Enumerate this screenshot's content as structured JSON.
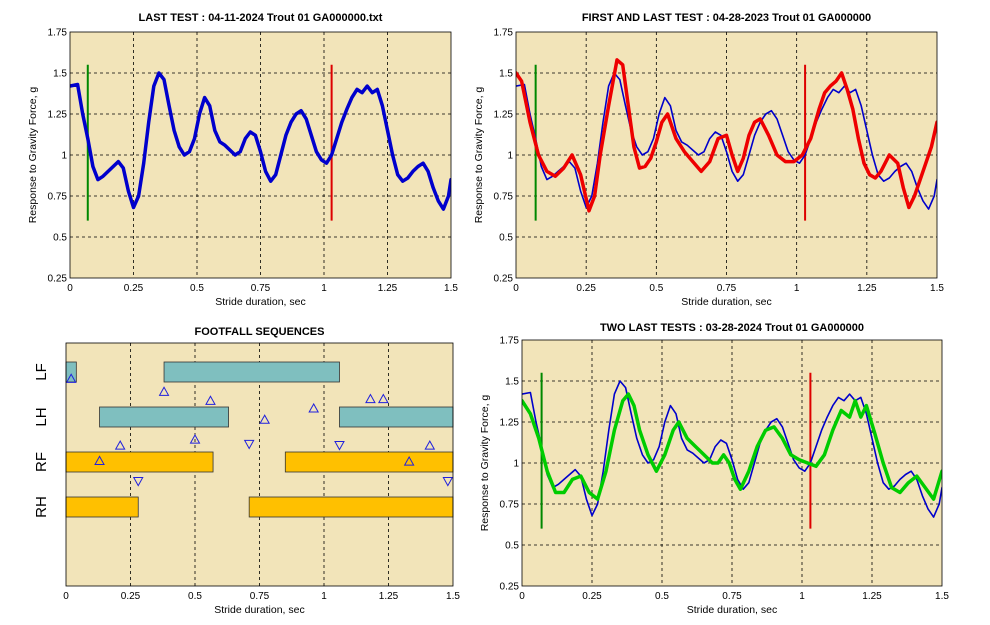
{
  "colors": {
    "background": "#F2E4B9",
    "blue": "#0000CC",
    "red": "#EE0000",
    "green": "#00CC00",
    "dark_green": "#008800",
    "marker_red": "#DD0000",
    "teal_bar": "#7FBFBF",
    "orange_bar": "#FFC000",
    "triangle": "#2020DD"
  },
  "chart_data": [
    {
      "id": "last-test",
      "type": "line",
      "title": "LAST TEST : 04-11-2024 Trout 01 GA000000.txt",
      "xlabel": "Stride duration, sec",
      "ylabel": "Response to Gravity Force, g",
      "xlim": [
        0,
        1.5
      ],
      "ylim": [
        0.25,
        1.75
      ],
      "xticks": [
        "0",
        "0.25",
        "0.5",
        "0.75",
        "1",
        "1.25",
        "1.5"
      ],
      "yticks": [
        "0.25",
        "0.5",
        "0.75",
        "1",
        "1.25",
        "1.5",
        "1.75"
      ],
      "grid": true,
      "vlines": [
        {
          "x": 0.07,
          "color": "dark_green"
        },
        {
          "x": 1.03,
          "color": "marker_red"
        }
      ],
      "series": [
        {
          "color": "blue",
          "width": 3.5,
          "x": [
            0,
            0.03,
            0.05,
            0.07,
            0.09,
            0.11,
            0.13,
            0.15,
            0.17,
            0.19,
            0.21,
            0.23,
            0.25,
            0.27,
            0.29,
            0.31,
            0.33,
            0.35,
            0.37,
            0.39,
            0.41,
            0.43,
            0.45,
            0.47,
            0.49,
            0.51,
            0.53,
            0.55,
            0.57,
            0.59,
            0.61,
            0.63,
            0.65,
            0.67,
            0.69,
            0.71,
            0.73,
            0.75,
            0.77,
            0.79,
            0.81,
            0.83,
            0.85,
            0.87,
            0.89,
            0.91,
            0.93,
            0.95,
            0.97,
            0.99,
            1.01,
            1.03,
            1.05,
            1.07,
            1.09,
            1.11,
            1.13,
            1.15,
            1.17,
            1.19,
            1.21,
            1.23,
            1.25,
            1.27,
            1.29,
            1.31,
            1.33,
            1.35,
            1.37,
            1.39,
            1.41,
            1.43,
            1.45,
            1.47,
            1.49,
            1.5
          ],
          "y": [
            1.42,
            1.43,
            1.25,
            1.1,
            0.93,
            0.85,
            0.87,
            0.9,
            0.93,
            0.96,
            0.92,
            0.78,
            0.68,
            0.75,
            0.95,
            1.2,
            1.42,
            1.5,
            1.46,
            1.3,
            1.15,
            1.05,
            1.0,
            1.02,
            1.1,
            1.25,
            1.35,
            1.3,
            1.15,
            1.08,
            1.06,
            1.03,
            1.0,
            1.02,
            1.1,
            1.14,
            1.12,
            1.02,
            0.9,
            0.84,
            0.88,
            1.0,
            1.12,
            1.2,
            1.25,
            1.27,
            1.22,
            1.12,
            1.02,
            0.97,
            0.95,
            1.0,
            1.1,
            1.2,
            1.28,
            1.35,
            1.4,
            1.38,
            1.42,
            1.38,
            1.4,
            1.3,
            1.15,
            1.0,
            0.88,
            0.84,
            0.86,
            0.9,
            0.93,
            0.95,
            0.9,
            0.8,
            0.72,
            0.67,
            0.75,
            0.85
          ]
        }
      ]
    },
    {
      "id": "first-and-last",
      "type": "line",
      "title": "FIRST AND LAST TEST : 04-28-2023 Trout 01 GA000000",
      "xlabel": "Stride duration, sec",
      "ylabel": "Response to Gravity Force, g",
      "xlim": [
        0,
        1.5
      ],
      "ylim": [
        0.25,
        1.75
      ],
      "xticks": [
        "0",
        "0.25",
        "0.5",
        "0.75",
        "1",
        "1.25",
        "1.5"
      ],
      "yticks": [
        "0.25",
        "0.5",
        "0.75",
        "1",
        "1.25",
        "1.5",
        "1.75"
      ],
      "grid": true,
      "vlines": [
        {
          "x": 0.07,
          "color": "dark_green"
        },
        {
          "x": 1.03,
          "color": "marker_red"
        }
      ],
      "series": [
        {
          "color": "blue",
          "width": 1.6,
          "x": [
            0,
            0.03,
            0.05,
            0.07,
            0.09,
            0.11,
            0.13,
            0.15,
            0.17,
            0.19,
            0.21,
            0.23,
            0.25,
            0.27,
            0.29,
            0.31,
            0.33,
            0.35,
            0.37,
            0.39,
            0.41,
            0.43,
            0.45,
            0.47,
            0.49,
            0.51,
            0.53,
            0.55,
            0.57,
            0.59,
            0.61,
            0.63,
            0.65,
            0.67,
            0.69,
            0.71,
            0.73,
            0.75,
            0.77,
            0.79,
            0.81,
            0.83,
            0.85,
            0.87,
            0.89,
            0.91,
            0.93,
            0.95,
            0.97,
            0.99,
            1.01,
            1.03,
            1.05,
            1.07,
            1.09,
            1.11,
            1.13,
            1.15,
            1.17,
            1.19,
            1.21,
            1.23,
            1.25,
            1.27,
            1.29,
            1.31,
            1.33,
            1.35,
            1.37,
            1.39,
            1.41,
            1.43,
            1.45,
            1.47,
            1.49,
            1.5
          ],
          "y": [
            1.42,
            1.43,
            1.25,
            1.1,
            0.93,
            0.85,
            0.87,
            0.9,
            0.93,
            0.96,
            0.92,
            0.78,
            0.68,
            0.75,
            0.95,
            1.2,
            1.42,
            1.5,
            1.46,
            1.3,
            1.15,
            1.05,
            1.0,
            1.02,
            1.1,
            1.25,
            1.35,
            1.3,
            1.15,
            1.08,
            1.06,
            1.03,
            1.0,
            1.02,
            1.1,
            1.14,
            1.12,
            1.02,
            0.9,
            0.84,
            0.88,
            1.0,
            1.12,
            1.2,
            1.25,
            1.27,
            1.22,
            1.12,
            1.02,
            0.97,
            0.95,
            1.0,
            1.1,
            1.2,
            1.28,
            1.35,
            1.4,
            1.38,
            1.42,
            1.38,
            1.4,
            1.3,
            1.15,
            1.0,
            0.88,
            0.84,
            0.86,
            0.9,
            0.93,
            0.95,
            0.9,
            0.8,
            0.72,
            0.67,
            0.75,
            0.85
          ]
        },
        {
          "color": "red",
          "width": 3.5,
          "x": [
            0,
            0.02,
            0.05,
            0.08,
            0.11,
            0.14,
            0.17,
            0.2,
            0.23,
            0.26,
            0.28,
            0.3,
            0.33,
            0.36,
            0.38,
            0.4,
            0.42,
            0.44,
            0.46,
            0.48,
            0.5,
            0.52,
            0.54,
            0.57,
            0.6,
            0.63,
            0.66,
            0.69,
            0.72,
            0.75,
            0.77,
            0.79,
            0.81,
            0.83,
            0.85,
            0.87,
            0.9,
            0.93,
            0.96,
            0.99,
            1.02,
            1.05,
            1.08,
            1.1,
            1.12,
            1.14,
            1.16,
            1.18,
            1.2,
            1.22,
            1.24,
            1.26,
            1.28,
            1.3,
            1.33,
            1.36,
            1.38,
            1.4,
            1.42,
            1.44,
            1.46,
            1.48,
            1.5
          ],
          "y": [
            1.5,
            1.45,
            1.2,
            1.0,
            0.9,
            0.87,
            0.92,
            1.0,
            0.88,
            0.66,
            0.75,
            1.0,
            1.3,
            1.58,
            1.55,
            1.3,
            1.05,
            0.92,
            0.93,
            0.98,
            1.08,
            1.2,
            1.25,
            1.1,
            1.02,
            0.96,
            0.9,
            0.96,
            1.1,
            1.12,
            1.0,
            0.9,
            0.98,
            1.12,
            1.2,
            1.22,
            1.12,
            1.0,
            0.96,
            0.96,
            1.0,
            1.1,
            1.28,
            1.38,
            1.42,
            1.45,
            1.5,
            1.4,
            1.28,
            1.1,
            0.95,
            0.88,
            0.86,
            0.9,
            1.0,
            0.95,
            0.8,
            0.68,
            0.75,
            0.85,
            0.95,
            1.05,
            1.2
          ]
        }
      ]
    },
    {
      "id": "footfall",
      "type": "bar",
      "title": "FOOTFALL SEQUENCES",
      "xlabel": "Stride duration, sec",
      "xlim": [
        0,
        1.5
      ],
      "xticks": [
        "0",
        "0.25",
        "0.5",
        "0.75",
        "1",
        "1.25",
        "1.5"
      ],
      "grid": true,
      "rows": [
        {
          "label": "LF",
          "color": "teal_bar",
          "intervals": [
            [
              0,
              0.04
            ],
            [
              0.38,
              1.06
            ]
          ]
        },
        {
          "label": "LH",
          "color": "teal_bar",
          "intervals": [
            [
              0.13,
              0.63
            ],
            [
              1.06,
              1.5
            ]
          ]
        },
        {
          "label": "RF",
          "color": "orange_bar",
          "intervals": [
            [
              0,
              0.57
            ],
            [
              0.85,
              1.5
            ]
          ]
        },
        {
          "label": "RH",
          "color": "orange_bar",
          "intervals": [
            [
              0,
              0.28
            ],
            [
              0.71,
              1.5
            ]
          ]
        }
      ],
      "markers": [
        {
          "x": 0.02,
          "y": 0.3,
          "dir": "up"
        },
        {
          "x": 0.38,
          "y": 0.88,
          "dir": "up"
        },
        {
          "x": 0.56,
          "y": 1.28,
          "dir": "up"
        },
        {
          "x": 0.77,
          "y": 2.12,
          "dir": "up"
        },
        {
          "x": 0.96,
          "y": 1.62,
          "dir": "up"
        },
        {
          "x": 1.18,
          "y": 1.2,
          "dir": "up"
        },
        {
          "x": 1.23,
          "y": 1.2,
          "dir": "up"
        },
        {
          "x": 0.21,
          "y": 3.27,
          "dir": "up"
        },
        {
          "x": 0.5,
          "y": 3.0,
          "dir": "up"
        },
        {
          "x": 0.71,
          "y": 3.2,
          "dir": "down"
        },
        {
          "x": 1.06,
          "y": 3.25,
          "dir": "down"
        },
        {
          "x": 1.41,
          "y": 3.27,
          "dir": "up"
        },
        {
          "x": 0.13,
          "y": 3.95,
          "dir": "up"
        },
        {
          "x": 0.28,
          "y": 4.85,
          "dir": "down"
        },
        {
          "x": 1.33,
          "y": 3.98,
          "dir": "up"
        },
        {
          "x": 1.48,
          "y": 4.85,
          "dir": "down"
        }
      ]
    },
    {
      "id": "two-last",
      "type": "line",
      "title": "TWO LAST TESTS : 03-28-2024 Trout 01 GA000000",
      "xlabel": "Stride duration, sec",
      "ylabel": "Response to Gravity Force, g",
      "xlim": [
        0,
        1.5
      ],
      "ylim": [
        0.25,
        1.75
      ],
      "xticks": [
        "0",
        "0.25",
        "0.5",
        "0.75",
        "1",
        "1.25",
        "1.5"
      ],
      "yticks": [
        "0.25",
        "0.5",
        "0.75",
        "1",
        "1.25",
        "1.5",
        "1.75"
      ],
      "grid": true,
      "vlines": [
        {
          "x": 0.07,
          "color": "dark_green"
        },
        {
          "x": 1.03,
          "color": "marker_red"
        }
      ],
      "series": [
        {
          "color": "blue",
          "width": 1.6,
          "x": [
            0,
            0.03,
            0.05,
            0.07,
            0.09,
            0.11,
            0.13,
            0.15,
            0.17,
            0.19,
            0.21,
            0.23,
            0.25,
            0.27,
            0.29,
            0.31,
            0.33,
            0.35,
            0.37,
            0.39,
            0.41,
            0.43,
            0.45,
            0.47,
            0.49,
            0.51,
            0.53,
            0.55,
            0.57,
            0.59,
            0.61,
            0.63,
            0.65,
            0.67,
            0.69,
            0.71,
            0.73,
            0.75,
            0.77,
            0.79,
            0.81,
            0.83,
            0.85,
            0.87,
            0.89,
            0.91,
            0.93,
            0.95,
            0.97,
            0.99,
            1.01,
            1.03,
            1.05,
            1.07,
            1.09,
            1.11,
            1.13,
            1.15,
            1.17,
            1.19,
            1.21,
            1.23,
            1.25,
            1.27,
            1.29,
            1.31,
            1.33,
            1.35,
            1.37,
            1.39,
            1.41,
            1.43,
            1.45,
            1.47,
            1.49,
            1.5
          ],
          "y": [
            1.42,
            1.43,
            1.25,
            1.1,
            0.93,
            0.85,
            0.87,
            0.9,
            0.93,
            0.96,
            0.92,
            0.78,
            0.68,
            0.75,
            0.95,
            1.2,
            1.42,
            1.5,
            1.46,
            1.3,
            1.15,
            1.05,
            1.0,
            1.02,
            1.1,
            1.25,
            1.35,
            1.3,
            1.15,
            1.08,
            1.06,
            1.03,
            1.0,
            1.02,
            1.1,
            1.14,
            1.12,
            1.02,
            0.9,
            0.84,
            0.88,
            1.0,
            1.12,
            1.2,
            1.25,
            1.27,
            1.22,
            1.12,
            1.02,
            0.97,
            0.95,
            1.0,
            1.1,
            1.2,
            1.28,
            1.35,
            1.4,
            1.38,
            1.42,
            1.38,
            1.4,
            1.3,
            1.15,
            1.0,
            0.88,
            0.84,
            0.86,
            0.9,
            0.93,
            0.95,
            0.9,
            0.8,
            0.72,
            0.67,
            0.75,
            0.85
          ]
        },
        {
          "color": "green",
          "width": 3.5,
          "x": [
            0,
            0.03,
            0.06,
            0.09,
            0.12,
            0.15,
            0.18,
            0.21,
            0.24,
            0.27,
            0.3,
            0.33,
            0.36,
            0.38,
            0.4,
            0.42,
            0.45,
            0.48,
            0.51,
            0.54,
            0.56,
            0.59,
            0.62,
            0.65,
            0.68,
            0.7,
            0.72,
            0.74,
            0.76,
            0.78,
            0.81,
            0.84,
            0.87,
            0.9,
            0.93,
            0.96,
            0.99,
            1.02,
            1.05,
            1.08,
            1.11,
            1.14,
            1.17,
            1.19,
            1.21,
            1.23,
            1.26,
            1.29,
            1.32,
            1.35,
            1.38,
            1.41,
            1.44,
            1.47,
            1.5
          ],
          "y": [
            1.38,
            1.3,
            1.15,
            0.95,
            0.82,
            0.82,
            0.9,
            0.92,
            0.82,
            0.78,
            0.95,
            1.2,
            1.38,
            1.42,
            1.35,
            1.2,
            1.05,
            0.95,
            1.05,
            1.2,
            1.25,
            1.15,
            1.1,
            1.05,
            1.0,
            1.0,
            1.05,
            1.0,
            0.9,
            0.84,
            0.95,
            1.1,
            1.2,
            1.22,
            1.15,
            1.05,
            1.02,
            1.0,
            0.98,
            1.05,
            1.2,
            1.32,
            1.28,
            1.38,
            1.28,
            1.35,
            1.18,
            1.0,
            0.85,
            0.82,
            0.88,
            0.92,
            0.85,
            0.78,
            0.95
          ]
        }
      ]
    }
  ]
}
